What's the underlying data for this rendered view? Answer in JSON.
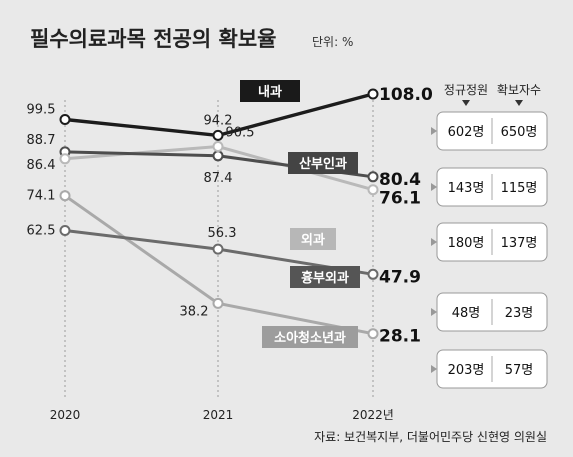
{
  "title": "필수의료과목 전공의 확보율",
  "unit": "단위: %",
  "source": "자료: 보건복지부, 더불어민주당 신현영 의원실",
  "table_headers": [
    "정규정원",
    "확보자수"
  ],
  "colors": {
    "내과": "#1c1c1c",
    "산부인과": "#4d4d4d",
    "외과": "#b9b9b9",
    "흉부외과": "#6b6b6b",
    "소아청소년과": "#a9a9a9"
  },
  "chart_data": {
    "type": "line",
    "x": [
      "2020",
      "2021",
      "2022년"
    ],
    "series": [
      {
        "name": "내과",
        "values": [
          99.5,
          94.2,
          108.0
        ],
        "labels": [
          "99.5",
          "94.2",
          "108.0"
        ],
        "quota": "602명",
        "secured": "650명"
      },
      {
        "name": "산부인과",
        "values": [
          88.7,
          87.4,
          80.4
        ],
        "labels": [
          "88.7",
          "87.4",
          "80.4"
        ],
        "quota": "143명",
        "secured": "115명"
      },
      {
        "name": "외과",
        "values": [
          86.4,
          90.5,
          76.1
        ],
        "labels": [
          "86.4",
          "90.5",
          "76.1"
        ],
        "quota": "180명",
        "secured": "137명"
      },
      {
        "name": "흉부외과",
        "values": [
          62.5,
          56.3,
          47.9
        ],
        "labels": [
          "62.5",
          "56.3",
          "47.9"
        ],
        "quota": "48명",
        "secured": "23명"
      },
      {
        "name": "소아청소년과",
        "values": [
          74.1,
          38.2,
          28.1
        ],
        "labels": [
          "74.1",
          "38.2",
          "28.1"
        ],
        "quota": "203명",
        "secured": "57명"
      }
    ],
    "grid": false,
    "legend": "none"
  }
}
